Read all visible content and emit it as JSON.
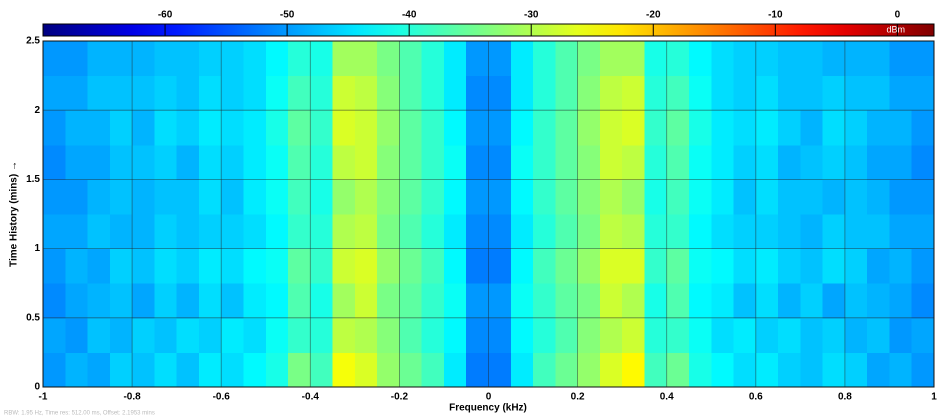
{
  "chart_data": {
    "type": "heatmap",
    "xlabel": "Frequency (kHz)",
    "ylabel": "Time History (mins) →",
    "colorbar_label": "dBm",
    "footer": "RBW: 1.95 Hz, Time res: 512.00 ms, Offset: 2.1953 mins",
    "colormap": "jet",
    "grid": true,
    "xlim": [
      -1,
      1
    ],
    "xticks": [
      -1,
      -0.8,
      -0.6,
      -0.4,
      -0.2,
      0,
      0.2,
      0.4,
      0.6,
      0.8,
      1
    ],
    "ylim": [
      0,
      2.5
    ],
    "yticks": [
      0,
      0.5,
      1,
      1.5,
      2,
      2.5
    ],
    "clim": [
      -70,
      3
    ],
    "colorbar_ticks": [
      -60,
      -50,
      -40,
      -30,
      -20,
      -10,
      0
    ],
    "z": [
      [
        -50,
        -48,
        -49,
        -46,
        -47,
        -45,
        -47,
        -44,
        -45,
        -43,
        -41,
        -34,
        -38,
        -25,
        -27,
        -32,
        -35,
        -38,
        -44,
        -52,
        -52,
        -44,
        -38,
        -35,
        -32,
        -27,
        -24,
        -38,
        -35,
        -41,
        -43,
        -45,
        -44,
        -46,
        -47,
        -45,
        -46,
        -49,
        -48,
        -50
      ],
      [
        -49,
        -50,
        -47,
        -48,
        -46,
        -47,
        -45,
        -46,
        -44,
        -45,
        -42,
        -39,
        -40,
        -29,
        -30,
        -33,
        -37,
        -40,
        -43,
        -51,
        -51,
        -43,
        -40,
        -37,
        -33,
        -30,
        -28,
        -40,
        -39,
        -42,
        -45,
        -44,
        -46,
        -45,
        -47,
        -46,
        -48,
        -47,
        -50,
        -49
      ],
      [
        -51,
        -49,
        -48,
        -47,
        -49,
        -46,
        -48,
        -45,
        -47,
        -44,
        -43,
        -37,
        -41,
        -31,
        -28,
        -34,
        -36,
        -39,
        -42,
        -50,
        -50,
        -42,
        -39,
        -36,
        -34,
        -28,
        -30,
        -41,
        -37,
        -43,
        -44,
        -47,
        -45,
        -48,
        -46,
        -49,
        -47,
        -48,
        -49,
        -51
      ],
      [
        -50,
        -48,
        -49,
        -46,
        -47,
        -45,
        -46,
        -44,
        -45,
        -43,
        -42,
        -36,
        -39,
        -28,
        -27,
        -32,
        -35,
        -38,
        -43,
        -52,
        -52,
        -43,
        -38,
        -35,
        -32,
        -27,
        -27,
        -39,
        -36,
        -42,
        -43,
        -45,
        -44,
        -46,
        -47,
        -45,
        -46,
        -49,
        -48,
        -50
      ],
      [
        -49,
        -49,
        -47,
        -48,
        -48,
        -46,
        -47,
        -46,
        -46,
        -45,
        -43,
        -39,
        -40,
        -30,
        -29,
        -34,
        -37,
        -40,
        -44,
        -51,
        -51,
        -44,
        -40,
        -37,
        -34,
        -29,
        -30,
        -40,
        -39,
        -43,
        -45,
        -46,
        -46,
        -47,
        -48,
        -46,
        -47,
        -47,
        -49,
        -49
      ],
      [
        -50,
        -50,
        -48,
        -47,
        -48,
        -47,
        -47,
        -45,
        -47,
        -44,
        -42,
        -38,
        -41,
        -32,
        -30,
        -33,
        -36,
        -39,
        -43,
        -50,
        -50,
        -43,
        -39,
        -36,
        -33,
        -30,
        -32,
        -41,
        -38,
        -42,
        -44,
        -47,
        -45,
        -47,
        -47,
        -48,
        -47,
        -48,
        -50,
        -50
      ],
      [
        -51,
        -49,
        -49,
        -47,
        -47,
        -46,
        -48,
        -45,
        -46,
        -44,
        -42,
        -37,
        -40,
        -29,
        -28,
        -33,
        -36,
        -39,
        -42,
        -51,
        -51,
        -42,
        -39,
        -36,
        -33,
        -28,
        -29,
        -40,
        -37,
        -42,
        -44,
        -46,
        -45,
        -48,
        -47,
        -46,
        -47,
        -49,
        -49,
        -51
      ],
      [
        -50,
        -48,
        -48,
        -46,
        -48,
        -45,
        -46,
        -44,
        -45,
        -44,
        -41,
        -36,
        -39,
        -27,
        -28,
        -32,
        -36,
        -39,
        -43,
        -50,
        -50,
        -43,
        -39,
        -36,
        -32,
        -28,
        -27,
        -39,
        -36,
        -41,
        -44,
        -45,
        -44,
        -46,
        -48,
        -45,
        -46,
        -48,
        -48,
        -50
      ],
      [
        -49,
        -49,
        -47,
        -47,
        -47,
        -46,
        -47,
        -45,
        -46,
        -45,
        -42,
        -38,
        -40,
        -28,
        -29,
        -33,
        -37,
        -40,
        -44,
        -51,
        -51,
        -44,
        -40,
        -37,
        -33,
        -29,
        -28,
        -40,
        -38,
        -42,
        -45,
        -46,
        -45,
        -47,
        -47,
        -46,
        -47,
        -47,
        -49,
        -49
      ],
      [
        -50,
        -50,
        -48,
        -48,
        -48,
        -47,
        -47,
        -46,
        -46,
        -45,
        -43,
        -40,
        -41,
        -31,
        -31,
        -34,
        -37,
        -40,
        -44,
        -50,
        -50,
        -44,
        -40,
        -37,
        -34,
        -31,
        -31,
        -41,
        -40,
        -43,
        -45,
        -46,
        -46,
        -47,
        -47,
        -48,
        -48,
        -48,
        -50,
        -50
      ]
    ]
  }
}
